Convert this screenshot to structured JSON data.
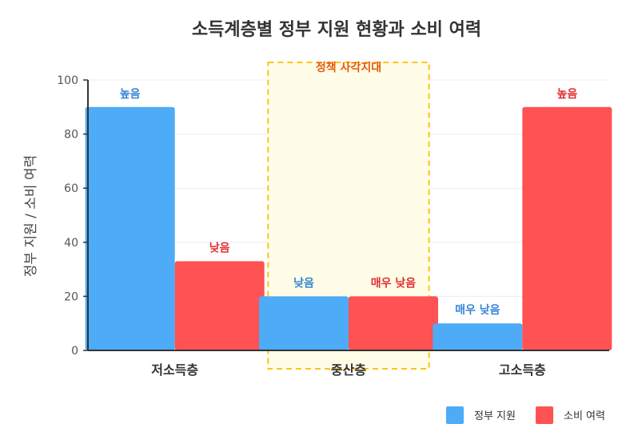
{
  "chart_data": {
    "type": "bar",
    "title": "소득계층별 정부 지원 현황과 소비 여력",
    "xlabel": "",
    "ylabel": "정부 지원 / 소비 여력",
    "ylim": [
      0,
      100
    ],
    "yticks": [
      0,
      20,
      40,
      60,
      80,
      100
    ],
    "grid": true,
    "legend_position": "bottom-right",
    "categories": [
      "저소득층",
      "중산층",
      "고소득층"
    ],
    "series": [
      {
        "name": "정부 지원",
        "color": "#4dabf7",
        "label_color": "#3a86d6",
        "values": [
          90,
          20,
          10
        ],
        "labels": [
          "높음",
          "낮음",
          "매우 낮음"
        ]
      },
      {
        "name": "소비 여력",
        "color": "#ff5252",
        "label_color": "#e03131",
        "values": [
          33,
          20,
          90
        ],
        "labels": [
          "낮음",
          "매우 낮음",
          "높음"
        ]
      }
    ],
    "annotation": {
      "text": "정책 사각지대",
      "category": "중산층",
      "border_color": "#fcc419",
      "fill_color": "#fffde7",
      "text_color": "#e8590c"
    }
  }
}
